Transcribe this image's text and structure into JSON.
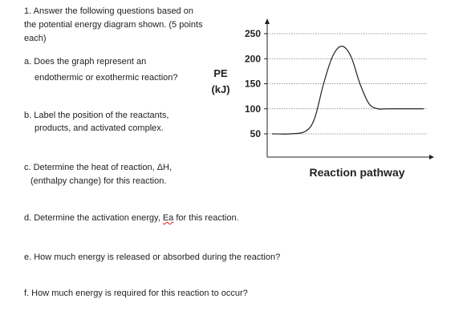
{
  "worksheet": {
    "heading": "1.  Answer the following questions based on the potential energy diagram shown. (5 points each)",
    "q_a_line1": "a. Does the graph represent an",
    "q_a_line2": "endothermic or exothermic reaction?",
    "q_b_line1": "b. Label the position of the reactants,",
    "q_b_line2": "products, and activated complex.",
    "q_c_line1": "c. Determine the heat of reaction, ΔH,",
    "q_c_line2": "(enthalpy change) for this reaction.",
    "q_d_pre": "d. Determine the activation energy, ",
    "q_d_term": "Ea",
    "q_d_post": " for this reaction.",
    "q_e": "e. How much energy is released or absorbed during the reaction?",
    "q_f": "f. How much energy is required for this reaction to occur?"
  },
  "chart_data": {
    "type": "line",
    "ylabel_line1": "PE",
    "ylabel_line2": "(kJ)",
    "xlabel": "Reaction pathway",
    "yticks": [
      50,
      100,
      150,
      200,
      250
    ],
    "ylim": [
      40,
      260
    ],
    "grid": "dotted horizontal",
    "series": [
      {
        "x": [
          0,
          0.12,
          0.22,
          0.28,
          0.34,
          0.4,
          0.46,
          0.52,
          0.58,
          0.64,
          0.7,
          0.76,
          1.0
        ],
        "values": [
          50,
          50,
          55,
          80,
          150,
          205,
          225,
          205,
          150,
          110,
          100,
          100,
          100
        ]
      }
    ]
  }
}
